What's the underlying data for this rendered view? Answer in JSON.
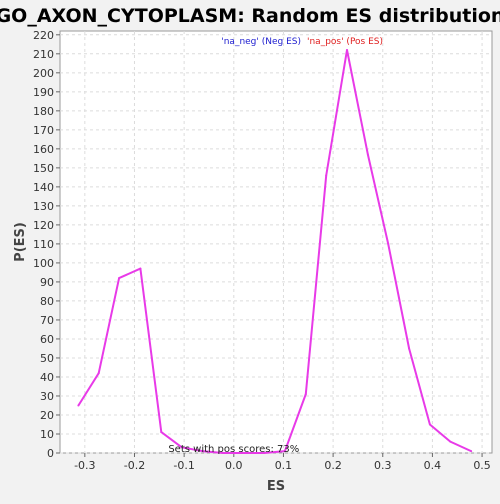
{
  "chart_data": {
    "type": "line",
    "title": "GO_AXON_CYTOPLASM: Random ES distribution",
    "xlabel": "ES",
    "ylabel": "P(ES)",
    "xlim": [
      -0.35,
      0.52
    ],
    "ylim": [
      0,
      222
    ],
    "x_ticks": [
      -0.3,
      -0.2,
      -0.1,
      0.0,
      0.1,
      0.2,
      0.3,
      0.4,
      0.5
    ],
    "x_tick_labels": [
      "-0.3",
      "-0.2",
      "-0.1",
      "0.0",
      "0.1",
      "0.2",
      "0.3",
      "0.4",
      "0.5"
    ],
    "y_ticks": [
      0,
      10,
      20,
      30,
      40,
      50,
      60,
      70,
      80,
      90,
      100,
      110,
      120,
      130,
      140,
      150,
      160,
      170,
      180,
      190,
      200,
      210,
      220
    ],
    "grid": true,
    "legend": {
      "placement": "top-center",
      "entries": [
        {
          "label": "'na_neg' (Neg ES)",
          "color": "#2020d0"
        },
        {
          "label": "'na_pos' (Pos ES)",
          "color": "#e02020"
        }
      ]
    },
    "annotation": "Sets with pos scores: 73%",
    "series": [
      {
        "color": "#e83ae8",
        "x": [
          -0.313,
          -0.272,
          -0.231,
          -0.188,
          -0.146,
          -0.105,
          -0.063,
          -0.022,
          0.02,
          0.061,
          0.103,
          0.145,
          0.186,
          0.228,
          0.27,
          0.311,
          0.353,
          0.395,
          0.436,
          0.478
        ],
        "y": [
          25,
          42,
          92,
          97,
          11,
          3,
          1,
          0,
          0,
          0,
          1,
          31,
          146,
          212,
          157,
          110,
          55,
          15,
          6,
          1
        ]
      }
    ]
  }
}
